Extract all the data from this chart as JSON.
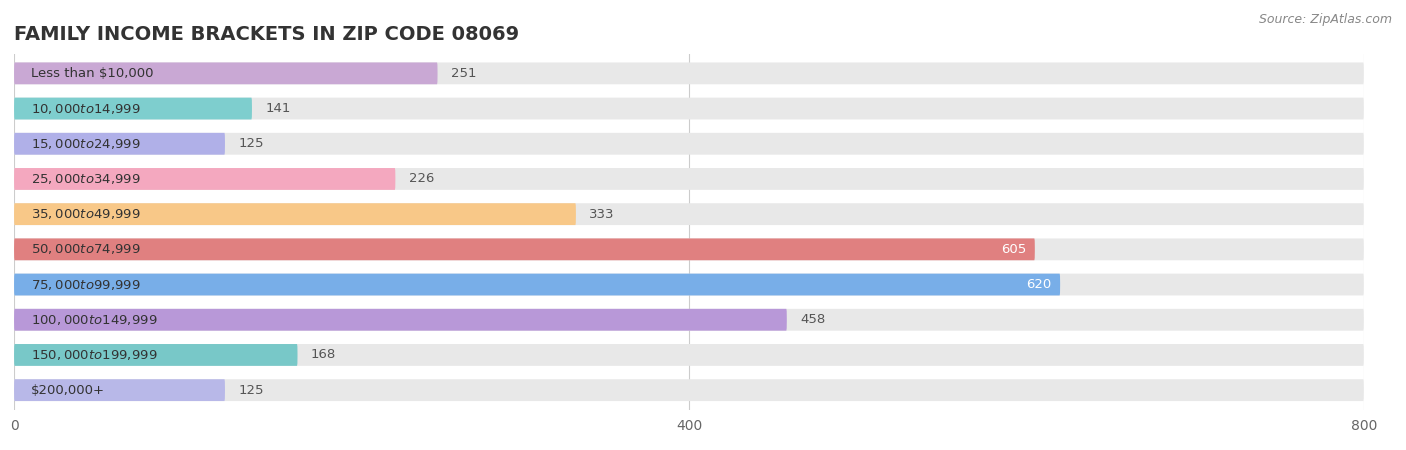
{
  "title": "FAMILY INCOME BRACKETS IN ZIP CODE 08069",
  "source": "Source: ZipAtlas.com",
  "categories": [
    "Less than $10,000",
    "$10,000 to $14,999",
    "$15,000 to $24,999",
    "$25,000 to $34,999",
    "$35,000 to $49,999",
    "$50,000 to $74,999",
    "$75,000 to $99,999",
    "$100,000 to $149,999",
    "$150,000 to $199,999",
    "$200,000+"
  ],
  "values": [
    251,
    141,
    125,
    226,
    333,
    605,
    620,
    458,
    168,
    125
  ],
  "bar_colors": [
    "#c9a8d4",
    "#7ecece",
    "#b0b0e8",
    "#f4a8bf",
    "#f8c888",
    "#e08080",
    "#78aee8",
    "#b898d8",
    "#78c8c8",
    "#b8b8e8"
  ],
  "xlim": [
    0,
    800
  ],
  "xticks": [
    0,
    400,
    800
  ],
  "bar_background_color": "#e8e8e8",
  "title_fontsize": 14,
  "label_fontsize": 9.5,
  "value_fontsize": 9.5,
  "inside_label_threshold": 500
}
